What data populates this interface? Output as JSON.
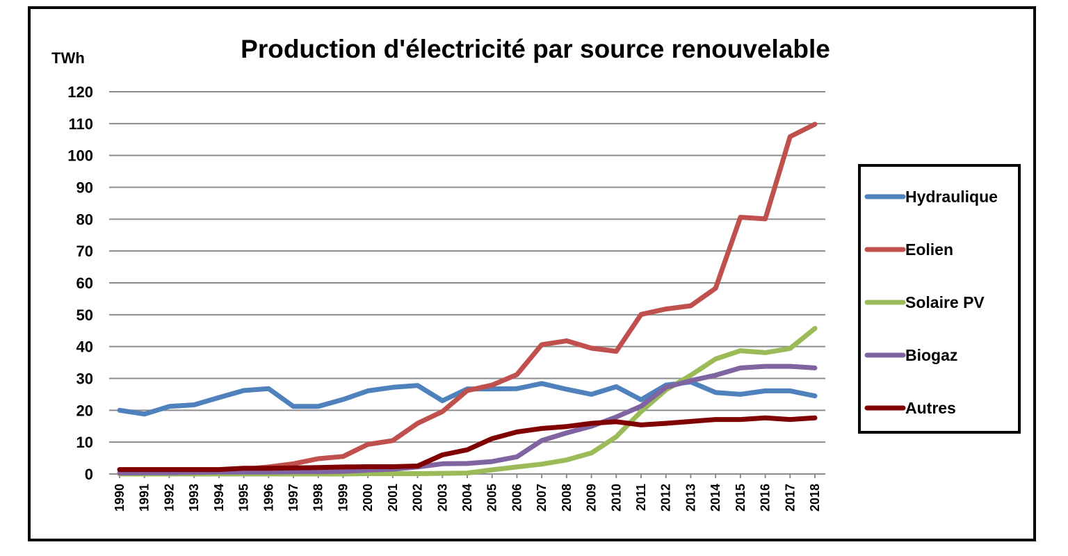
{
  "chart_data": {
    "type": "line",
    "title": "Production d'électricité par source renouvelable",
    "ylabel": "TWh",
    "xlabel": "",
    "ylim": [
      0,
      120
    ],
    "yticks": [
      0,
      10,
      20,
      30,
      40,
      50,
      60,
      70,
      80,
      90,
      100,
      110,
      120
    ],
    "grid": true,
    "legend_position": "right",
    "x": [
      "1990",
      "1991",
      "1992",
      "1993",
      "1994",
      "1995",
      "1996",
      "1997",
      "1998",
      "1999",
      "2000",
      "2001",
      "2002",
      "2003",
      "2004",
      "2005",
      "2006",
      "2007",
      "2008",
      "2009",
      "2010",
      "2011",
      "2012",
      "2013",
      "2014",
      "2015",
      "2016",
      "2017",
      "2018"
    ],
    "series": [
      {
        "name": "Hydraulique",
        "color": "#4F81BD",
        "values": [
          20,
          18.8,
          21.2,
          21.7,
          24,
          26.2,
          26.8,
          21.2,
          21.2,
          23.4,
          26.1,
          27.2,
          27.8,
          23,
          26.7,
          26.7,
          26.8,
          28.4,
          26.6,
          25,
          27.4,
          23.3,
          27.9,
          28.9,
          25.6,
          25,
          26.1,
          26.1,
          24.5
        ]
      },
      {
        "name": "Eolien",
        "color": "#C0504D",
        "values": [
          0.1,
          0.2,
          0.2,
          0.3,
          0.5,
          1.5,
          2.2,
          3.2,
          4.8,
          5.5,
          9.3,
          10.5,
          15.9,
          19.6,
          26.2,
          27.9,
          31.2,
          40.6,
          41.8,
          39.5,
          38.5,
          50.1,
          51.8,
          52.8,
          58.3,
          80.6,
          80.1,
          105.9,
          109.8
        ]
      },
      {
        "name": "Solaire PV",
        "color": "#9BBB59",
        "values": [
          0,
          0,
          0,
          0,
          0,
          0,
          0,
          0,
          0,
          0,
          0.1,
          0.1,
          0.1,
          0.2,
          0.3,
          1.3,
          2.2,
          3.1,
          4.4,
          6.6,
          11.7,
          19.6,
          26.4,
          31,
          36.1,
          38.7,
          38.1,
          39.4,
          45.7
        ]
      },
      {
        "name": "Biogaz",
        "color": "#8064A2",
        "values": [
          0.3,
          0.4,
          0.4,
          0.5,
          0.6,
          0.6,
          0.6,
          0.7,
          0.7,
          0.8,
          1.2,
          1.5,
          2.2,
          3.2,
          3.3,
          3.9,
          5.4,
          10.5,
          12.9,
          15,
          17.9,
          21.3,
          27.2,
          29.3,
          31,
          33.3,
          33.8,
          33.8,
          33.3
        ]
      },
      {
        "name": "Autres",
        "color": "#800000",
        "values": [
          1.4,
          1.4,
          1.4,
          1.4,
          1.4,
          1.8,
          1.8,
          1.9,
          2,
          2.2,
          2.3,
          2.3,
          2.5,
          6,
          7.6,
          11.1,
          13.2,
          14.3,
          14.9,
          15.9,
          16.4,
          15.4,
          15.9,
          16.5,
          17.1,
          17.1,
          17.6,
          17.1,
          17.6
        ]
      }
    ]
  }
}
